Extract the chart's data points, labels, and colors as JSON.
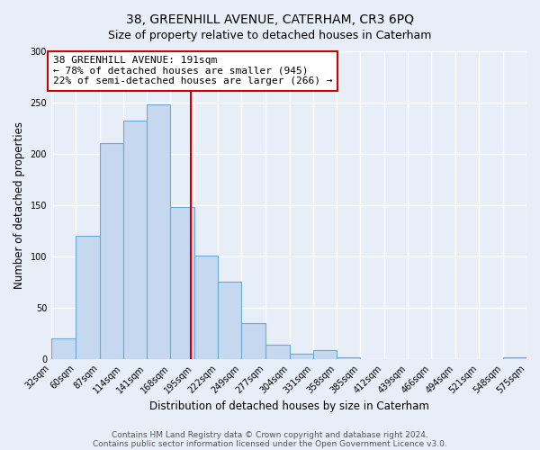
{
  "title": "38, GREENHILL AVENUE, CATERHAM, CR3 6PQ",
  "subtitle": "Size of property relative to detached houses in Caterham",
  "xlabel": "Distribution of detached houses by size in Caterham",
  "ylabel": "Number of detached properties",
  "bin_edges": [
    32,
    60,
    87,
    114,
    141,
    168,
    195,
    222,
    249,
    277,
    304,
    331,
    358,
    385,
    412,
    439,
    466,
    494,
    521,
    548,
    575
  ],
  "bar_heights": [
    20,
    120,
    210,
    232,
    248,
    148,
    101,
    75,
    35,
    14,
    5,
    9,
    2,
    0,
    0,
    0,
    0,
    0,
    0,
    2
  ],
  "bar_color": "#c5d8f0",
  "bar_edge_color": "#6aaad4",
  "vline_x": 191,
  "vline_color": "#cc0000",
  "annotation_text": "38 GREENHILL AVENUE: 191sqm\n← 78% of detached houses are smaller (945)\n22% of semi-detached houses are larger (266) →",
  "annotation_box_color": "#ffffff",
  "annotation_box_edge_color": "#cc0000",
  "ylim": [
    0,
    300
  ],
  "yticks": [
    0,
    50,
    100,
    150,
    200,
    250,
    300
  ],
  "tick_labels": [
    "32sqm",
    "60sqm",
    "87sqm",
    "114sqm",
    "141sqm",
    "168sqm",
    "195sqm",
    "222sqm",
    "249sqm",
    "277sqm",
    "304sqm",
    "331sqm",
    "358sqm",
    "385sqm",
    "412sqm",
    "439sqm",
    "466sqm",
    "494sqm",
    "521sqm",
    "548sqm",
    "575sqm"
  ],
  "footer_line1": "Contains HM Land Registry data © Crown copyright and database right 2024.",
  "footer_line2": "Contains public sector information licensed under the Open Government Licence v3.0.",
  "bg_color": "#e8eef8",
  "plot_bg_color": "#e8eef8",
  "title_fontsize": 10,
  "subtitle_fontsize": 9,
  "axis_label_fontsize": 8.5,
  "tick_fontsize": 7,
  "annotation_fontsize": 8,
  "footer_fontsize": 6.5
}
